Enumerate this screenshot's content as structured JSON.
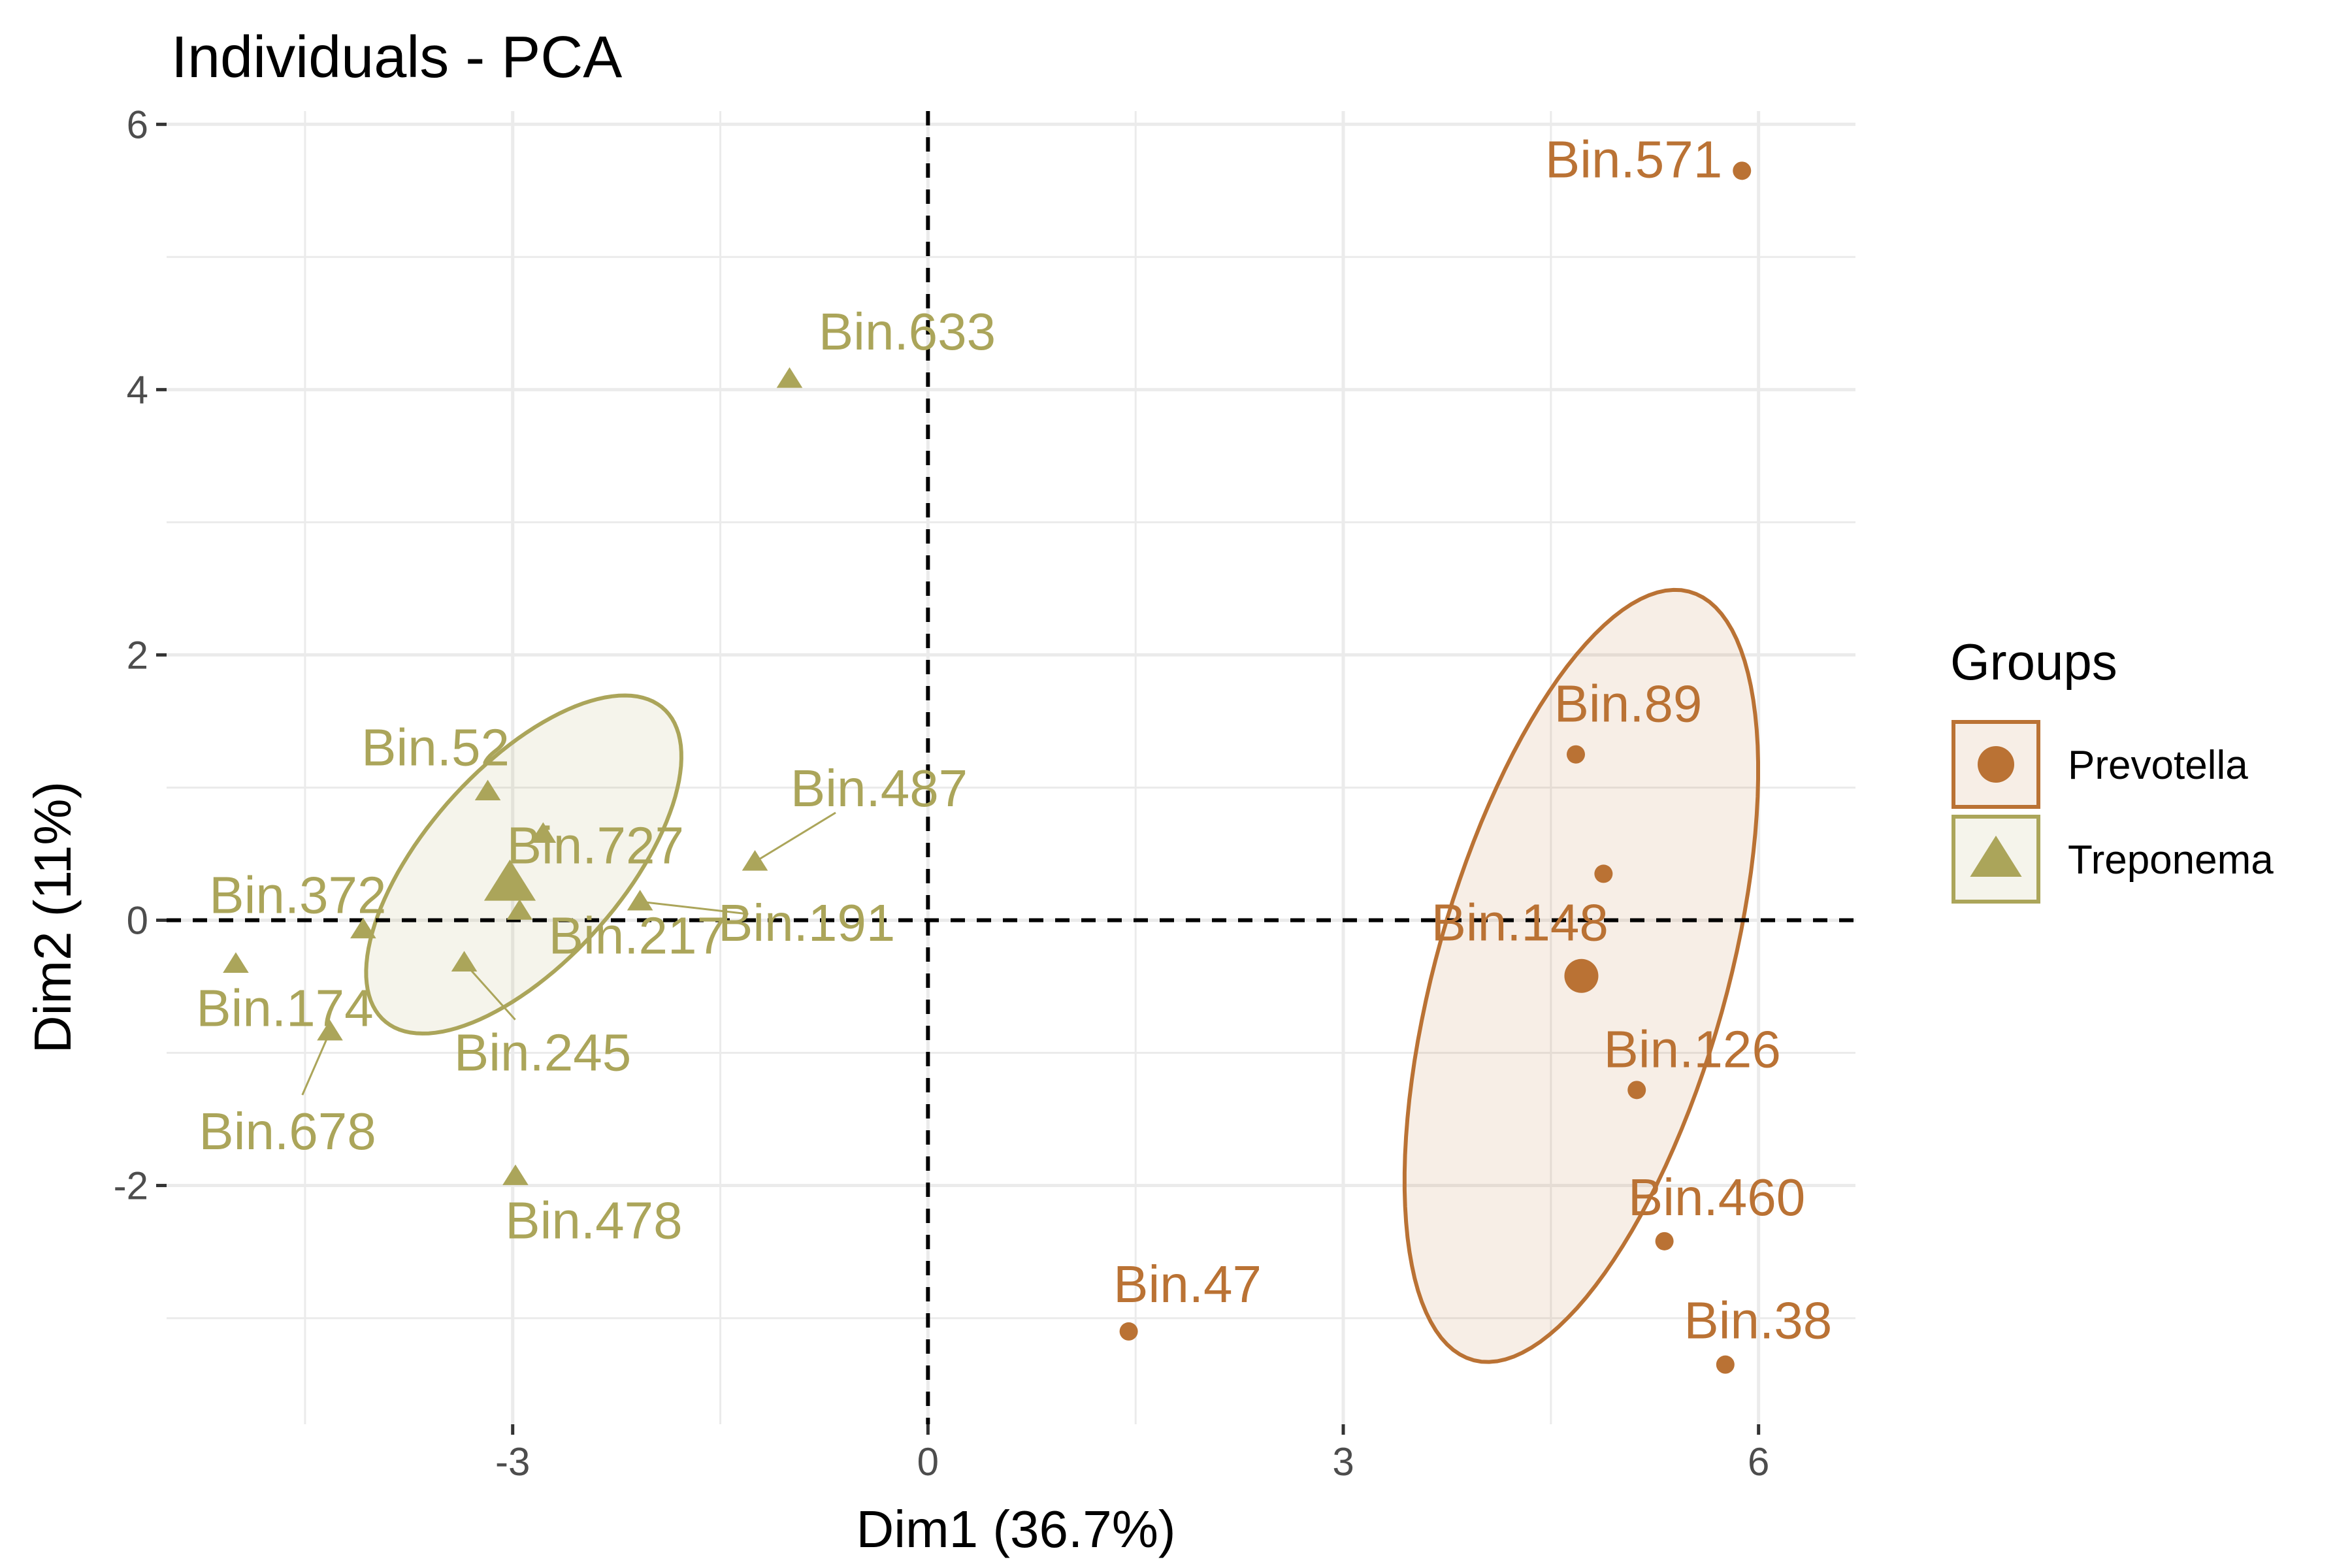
{
  "chart_data": {
    "type": "scatter",
    "title": "Individuals - PCA",
    "xlabel": "Dim1 (36.7%)",
    "ylabel": "Dim2 (11%)",
    "xlim": [
      -5.5,
      6.7
    ],
    "ylim": [
      -3.8,
      6.1
    ],
    "x_ticks": [
      -3,
      0,
      3,
      6
    ],
    "y_ticks": [
      -2,
      0,
      2,
      4,
      6
    ],
    "x_tick_labels": [
      "-3",
      "0",
      "3",
      "6"
    ],
    "y_tick_labels": [
      "-2",
      "0",
      "2",
      "4",
      "6"
    ],
    "grid": true,
    "reference_lines": {
      "x": 0,
      "y": 0,
      "style": "dashed"
    },
    "legend": {
      "title": "Groups",
      "position": "right",
      "entries": [
        {
          "label": "Prevotella",
          "color": "#BA7234",
          "shape": "circle"
        },
        {
          "label": "Treponema",
          "color": "#ABA55A",
          "shape": "triangle"
        }
      ]
    },
    "series": [
      {
        "name": "Prevotella",
        "color": "#BA7234",
        "shape": "circle",
        "centroid": {
          "x": 4.72,
          "y": -0.42
        },
        "ellipse": {
          "cx": 4.72,
          "cy": -0.42,
          "rx": 3.0,
          "ry": 1.05,
          "angle_deg": 75
        },
        "points": [
          {
            "label": "Bin.571",
            "x": 5.88,
            "y": 5.65
          },
          {
            "label": "Bin.89",
            "x": 4.68,
            "y": 1.25
          },
          {
            "label": "",
            "x": 4.88,
            "y": 0.35
          },
          {
            "label": "Bin.148",
            "x": 4.7,
            "y": -0.4
          },
          {
            "label": "Bin.126",
            "x": 5.12,
            "y": -1.28
          },
          {
            "label": "Bin.460",
            "x": 5.32,
            "y": -2.42
          },
          {
            "label": "Bin.38",
            "x": 5.76,
            "y": -3.35
          },
          {
            "label": "Bin.47",
            "x": 1.45,
            "y": -3.1
          }
        ]
      },
      {
        "name": "Treponema",
        "color": "#ABA55A",
        "shape": "triangle",
        "centroid": {
          "x": -3.02,
          "y": 0.28
        },
        "ellipse": {
          "cx": -2.92,
          "cy": 0.42,
          "rx": 1.55,
          "ry": 0.72,
          "angle_deg": 50
        },
        "points": [
          {
            "label": "Bin.633",
            "x": -1.0,
            "y": 4.08
          },
          {
            "label": "Bin.52",
            "x": -3.18,
            "y": 0.97
          },
          {
            "label": "Bin.487",
            "x": -1.25,
            "y": 0.44
          },
          {
            "label": "Bin.727",
            "x": -2.78,
            "y": 0.65
          },
          {
            "label": "Bin.372",
            "x": -4.08,
            "y": -0.07
          },
          {
            "label": "Bin.191",
            "x": -2.08,
            "y": 0.14
          },
          {
            "label": "Bin.217",
            "x": -2.95,
            "y": 0.07
          },
          {
            "label": "Bin.174",
            "x": -5.0,
            "y": -0.33
          },
          {
            "label": "Bin.245",
            "x": -3.35,
            "y": -0.32
          },
          {
            "label": "Bin.678",
            "x": -4.32,
            "y": -0.84
          },
          {
            "label": "Bin.478",
            "x": -2.98,
            "y": -1.93
          }
        ]
      }
    ]
  }
}
